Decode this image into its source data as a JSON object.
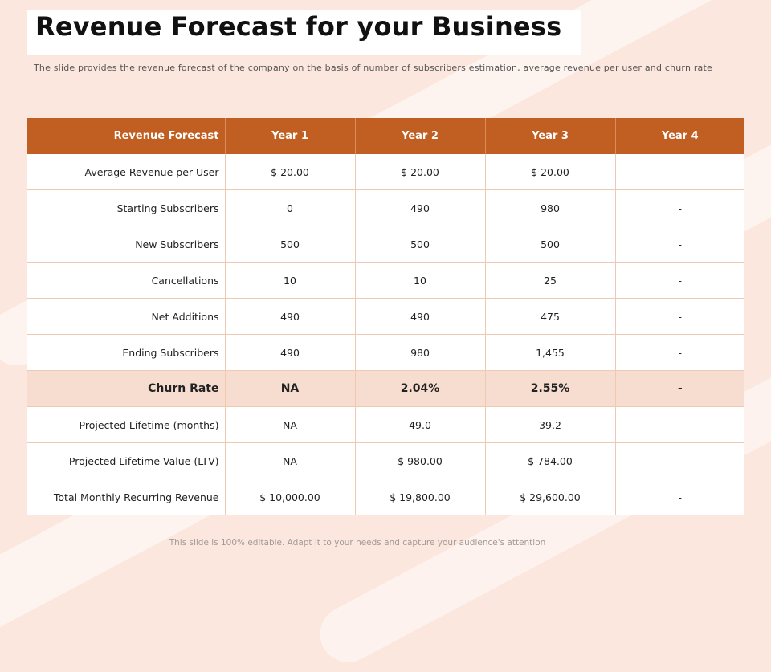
{
  "title": "Revenue Forecast for your Business",
  "subtitle": "The slide provides the revenue forecast of the company on the basis of number of subscribers estimation, average revenue per user and churn rate",
  "table": {
    "headers": [
      "Revenue Forecast",
      "Year 1",
      "Year 2",
      "Year 3",
      "Year 4"
    ],
    "rows": [
      [
        "Average Revenue per User",
        "$ 20.00",
        "$ 20.00",
        "$ 20.00",
        "-"
      ],
      [
        "Starting Subscribers",
        "0",
        "490",
        "980",
        "-"
      ],
      [
        "New Subscribers",
        "500",
        "500",
        "500",
        "-"
      ],
      [
        "Cancellations",
        "10",
        "10",
        "25",
        "-"
      ],
      [
        "Net Additions",
        "490",
        "490",
        "475",
        "-"
      ],
      [
        "Ending Subscribers",
        "490",
        "980",
        "1,455",
        "-"
      ],
      [
        "Churn Rate",
        "NA",
        "2.04%",
        "2.55%",
        "-"
      ],
      [
        "Projected Lifetime (months)",
        "NA",
        "49.0",
        "39.2",
        "-"
      ],
      [
        "Projected Lifetime  Value (LTV)",
        "NA",
        "$ 980.00",
        "$ 784.00",
        "-"
      ],
      [
        "Total Monthly Recurring Revenue",
        "$ 10,000.00",
        "$ 19,800.00",
        "$ 29,600.00",
        "-"
      ]
    ]
  },
  "footer": "This slide is 100% editable. Adapt it to your needs and capture your audience's attention",
  "colors": {
    "header_bg": "#c05f21",
    "highlight_row_bg": "#f7ddd0",
    "background": "#fbe7de"
  }
}
